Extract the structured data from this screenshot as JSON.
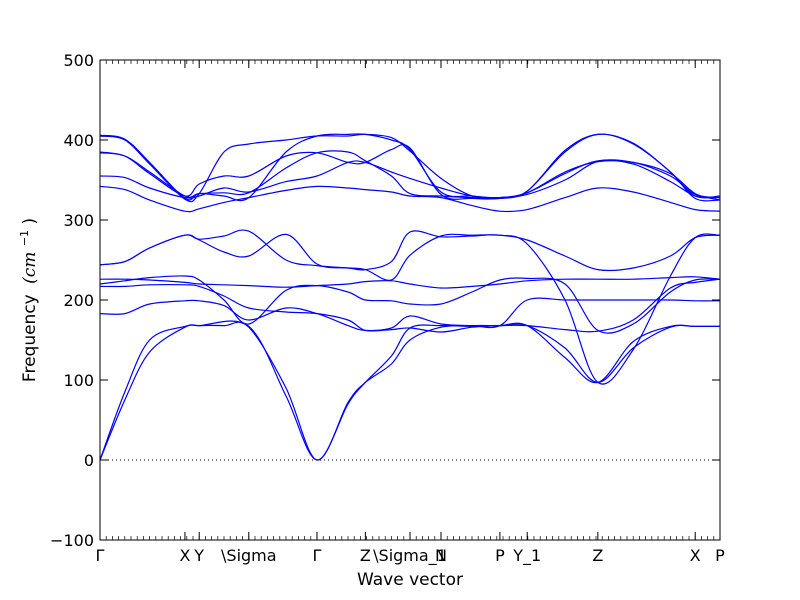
{
  "chart_data": {
    "type": "line",
    "title": "",
    "xlabel": "Wave vector",
    "ylabel": "Frequency",
    "ylabel_unit": "(cm",
    "ylabel_unit_exp": "−1",
    "ylabel_unit_close": ")",
    "ylim": [
      -100,
      500
    ],
    "yticks": [
      -100,
      0,
      100,
      200,
      300,
      400,
      500
    ],
    "ytick_labels": [
      "−100",
      "0",
      "100",
      "200",
      "300",
      "400",
      "500"
    ],
    "grid": false,
    "zero_line": "dotted",
    "line_color": "#0000ff",
    "xlim": [
      0,
      1
    ],
    "kpoints": [
      {
        "label": "Γ",
        "x": 0.0
      },
      {
        "label": "X",
        "x": 0.137
      },
      {
        "label": "Y",
        "x": 0.16
      },
      {
        "label": "\\Sigma",
        "x": 0.24
      },
      {
        "label": "Γ",
        "x": 0.35
      },
      {
        "label": "Z",
        "x": 0.428
      },
      {
        "label": "\\Sigma_1",
        "x": 0.5
      },
      {
        "label": "N",
        "x": 0.55
      },
      {
        "label": "P",
        "x": 0.645
      },
      {
        "label": "Y_1",
        "x": 0.689
      },
      {
        "label": "Z",
        "x": 0.803
      },
      {
        "label": "X",
        "x": 0.96
      },
      {
        "label": "P",
        "x": 1.0
      }
    ],
    "series": [
      {
        "x": [
          0,
          0.04,
          0.08,
          0.137,
          0.16,
          0.24,
          0.3,
          0.35,
          0.4,
          0.428,
          0.47,
          0.5,
          0.55,
          0.6,
          0.645,
          0.689,
          0.75,
          0.803,
          0.86,
          0.92,
          0.96,
          1.0
        ],
        "y": [
          0,
          85,
          150,
          167,
          168,
          167,
          80,
          0,
          70,
          97,
          130,
          165,
          168,
          167,
          168,
          168,
          128,
          97,
          148,
          167,
          167,
          167
        ]
      },
      {
        "x": [
          0,
          0.04,
          0.08,
          0.137,
          0.16,
          0.2,
          0.24,
          0.3,
          0.35,
          0.4,
          0.428,
          0.47,
          0.5,
          0.55,
          0.6,
          0.645,
          0.689,
          0.75,
          0.803,
          0.86,
          0.92,
          0.96,
          1.0
        ],
        "y": [
          0,
          75,
          135,
          166,
          168,
          168,
          166,
          90,
          0,
          72,
          97,
          120,
          150,
          166,
          168,
          168,
          168,
          140,
          97,
          140,
          166,
          167,
          167
        ]
      },
      {
        "x": [
          0,
          0.04,
          0.08,
          0.137,
          0.16,
          0.2,
          0.24,
          0.3,
          0.35,
          0.4,
          0.428,
          0.47,
          0.5,
          0.55,
          0.6,
          0.645,
          0.689,
          0.75,
          0.803,
          0.86,
          0.92,
          0.96,
          1.0
        ],
        "y": [
          183,
          183,
          195,
          199,
          199,
          193,
          175,
          190,
          183,
          168,
          162,
          165,
          180,
          170,
          168,
          168,
          200,
          200,
          200,
          200,
          200,
          199,
          199
        ]
      },
      {
        "x": [
          0,
          0.04,
          0.08,
          0.137,
          0.16,
          0.2,
          0.24,
          0.3,
          0.35,
          0.4,
          0.428,
          0.47,
          0.5,
          0.55,
          0.6,
          0.645,
          0.689,
          0.75,
          0.803,
          0.86,
          0.92,
          0.96,
          1.0
        ],
        "y": [
          217,
          217,
          219,
          219,
          217,
          205,
          190,
          185,
          183,
          175,
          162,
          163,
          165,
          160,
          166,
          168,
          168,
          163,
          161,
          175,
          215,
          222,
          226
        ]
      },
      {
        "x": [
          0,
          0.04,
          0.08,
          0.137,
          0.16,
          0.2,
          0.24,
          0.3,
          0.35,
          0.4,
          0.428,
          0.47,
          0.5,
          0.55,
          0.6,
          0.645,
          0.689,
          0.75,
          0.803,
          0.86,
          0.92,
          0.96,
          1.0
        ],
        "y": [
          220,
          224,
          228,
          230,
          225,
          200,
          170,
          212,
          218,
          210,
          200,
          199,
          195,
          195,
          210,
          225,
          227,
          220,
          162,
          170,
          210,
          225,
          226
        ]
      },
      {
        "x": [
          0,
          0.04,
          0.08,
          0.137,
          0.16,
          0.2,
          0.24,
          0.3,
          0.35,
          0.4,
          0.428,
          0.47,
          0.5,
          0.55,
          0.6,
          0.645,
          0.689,
          0.75,
          0.803,
          0.86,
          0.92,
          0.96,
          1.0
        ],
        "y": [
          226,
          226,
          225,
          222,
          220,
          219,
          218,
          216,
          218,
          220,
          223,
          224,
          220,
          215,
          217,
          220,
          224,
          226,
          226,
          226,
          228,
          229,
          226
        ]
      },
      {
        "x": [
          0,
          0.04,
          0.08,
          0.137,
          0.16,
          0.2,
          0.24,
          0.3,
          0.35,
          0.4,
          0.428,
          0.47,
          0.5,
          0.55,
          0.6,
          0.645,
          0.689,
          0.75,
          0.803,
          0.86,
          0.92,
          0.96,
          1.0
        ],
        "y": [
          244,
          248,
          265,
          281,
          275,
          260,
          255,
          282,
          245,
          240,
          238,
          248,
          285,
          279,
          280,
          281,
          270,
          200,
          97,
          138,
          230,
          278,
          281
        ]
      },
      {
        "x": [
          0,
          0.04,
          0.08,
          0.137,
          0.16,
          0.2,
          0.24,
          0.3,
          0.35,
          0.4,
          0.428,
          0.47,
          0.5,
          0.55,
          0.6,
          0.645,
          0.689,
          0.75,
          0.803,
          0.86,
          0.92,
          0.96,
          1.0
        ],
        "y": [
          244,
          248,
          265,
          281,
          276,
          280,
          286,
          250,
          243,
          240,
          238,
          225,
          256,
          280,
          281,
          281,
          275,
          255,
          238,
          240,
          255,
          278,
          281
        ]
      },
      {
        "x": [
          0,
          0.04,
          0.08,
          0.137,
          0.16,
          0.2,
          0.24,
          0.3,
          0.35,
          0.4,
          0.428,
          0.47,
          0.5,
          0.55,
          0.6,
          0.645,
          0.689,
          0.75,
          0.803,
          0.86,
          0.92,
          0.96,
          1.0
        ],
        "y": [
          342,
          338,
          325,
          311,
          314,
          322,
          328,
          337,
          342,
          340,
          338,
          335,
          330,
          328,
          318,
          311,
          313,
          328,
          340,
          335,
          322,
          313,
          311
        ]
      },
      {
        "x": [
          0,
          0.04,
          0.08,
          0.137,
          0.16,
          0.2,
          0.24,
          0.3,
          0.35,
          0.4,
          0.428,
          0.47,
          0.5,
          0.55,
          0.6,
          0.645,
          0.689,
          0.75,
          0.803,
          0.86,
          0.92,
          0.96,
          1.0
        ],
        "y": [
          355,
          353,
          340,
          328,
          330,
          340,
          335,
          348,
          355,
          372,
          372,
          360,
          352,
          340,
          330,
          328,
          332,
          350,
          373,
          370,
          348,
          330,
          328
        ]
      },
      {
        "x": [
          0,
          0.04,
          0.08,
          0.137,
          0.16,
          0.2,
          0.24,
          0.3,
          0.35,
          0.4,
          0.428,
          0.47,
          0.5,
          0.55,
          0.6,
          0.645,
          0.689,
          0.75,
          0.803,
          0.86,
          0.92,
          0.96,
          1.0
        ],
        "y": [
          384,
          380,
          360,
          330,
          333,
          334,
          334,
          365,
          384,
          385,
          374,
          355,
          333,
          330,
          328,
          328,
          334,
          358,
          374,
          372,
          355,
          332,
          328
        ]
      },
      {
        "x": [
          0,
          0.04,
          0.08,
          0.137,
          0.16,
          0.2,
          0.24,
          0.3,
          0.35,
          0.4,
          0.428,
          0.47,
          0.5,
          0.55,
          0.6,
          0.645,
          0.689,
          0.75,
          0.803,
          0.86,
          0.92,
          0.96,
          1.0
        ],
        "y": [
          385,
          380,
          358,
          330,
          345,
          355,
          355,
          380,
          384,
          372,
          372,
          388,
          390,
          332,
          327,
          327,
          334,
          360,
          373,
          372,
          358,
          333,
          325
        ]
      },
      {
        "x": [
          0,
          0.04,
          0.08,
          0.137,
          0.16,
          0.2,
          0.24,
          0.3,
          0.35,
          0.4,
          0.428,
          0.47,
          0.5,
          0.55,
          0.6,
          0.645,
          0.689,
          0.75,
          0.803,
          0.86,
          0.92,
          0.96,
          1.0
        ],
        "y": [
          405,
          400,
          370,
          326,
          333,
          385,
          395,
          400,
          405,
          405,
          407,
          403,
          386,
          352,
          330,
          327,
          336,
          385,
          407,
          395,
          360,
          327,
          325
        ]
      },
      {
        "x": [
          0,
          0.04,
          0.08,
          0.137,
          0.16,
          0.2,
          0.24,
          0.3,
          0.35,
          0.4,
          0.428,
          0.47,
          0.5,
          0.55,
          0.6,
          0.645,
          0.689,
          0.75,
          0.803,
          0.86,
          0.92,
          0.96,
          1.0
        ],
        "y": [
          406,
          401,
          372,
          327,
          333,
          330,
          328,
          385,
          405,
          407,
          407,
          400,
          388,
          335,
          330,
          328,
          336,
          387,
          407,
          396,
          360,
          330,
          330
        ]
      }
    ]
  }
}
